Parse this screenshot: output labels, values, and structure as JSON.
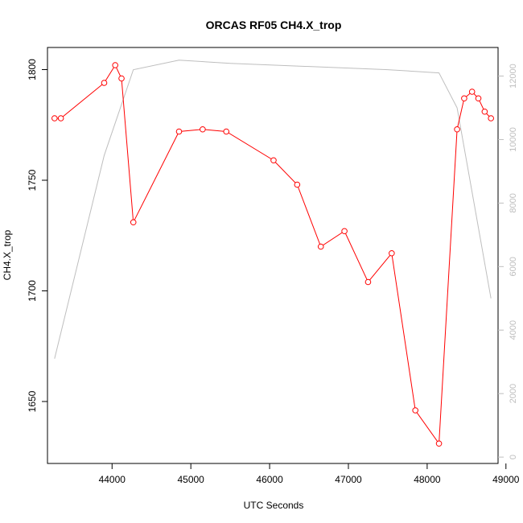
{
  "chart_data": {
    "type": "line",
    "title": "ORCAS RF05 CH4.X_trop",
    "xlabel": "UTC Seconds",
    "ylabel": "CH4.X_trop",
    "xlim": [
      43180,
      48900
    ],
    "ylim": [
      1622,
      1810
    ],
    "y2lim": [
      -200,
      12900
    ],
    "x_ticks": [
      44000,
      45000,
      46000,
      47000,
      48000,
      49000
    ],
    "x_tick_labels": [
      "44000",
      "45000",
      "46000",
      "47000",
      "48000",
      "49000"
    ],
    "y_ticks": [
      1650,
      1700,
      1750,
      1800
    ],
    "y_tick_labels": [
      "1650",
      "1700",
      "1750",
      "1800"
    ],
    "y2_ticks": [
      0,
      2000,
      4000,
      6000,
      8000,
      10000,
      12000
    ],
    "y2_tick_labels": [
      "0",
      "2000",
      "4000",
      "6000",
      "8000",
      "10000",
      "12000"
    ],
    "colors": {
      "ch4": "#ff0000",
      "secondary": "#bebebe",
      "axis": "#000000",
      "axis2": "#bebebe"
    },
    "series": [
      {
        "axis": "left",
        "style": "line-points",
        "x": [
          43270,
          43350,
          43900,
          44040,
          44120,
          44270,
          44850,
          45150,
          45450,
          46050,
          46350,
          46650,
          46950,
          47250,
          47550,
          47850,
          48150,
          48380,
          48470,
          48570,
          48650,
          48730,
          48810
        ],
        "y": [
          1778,
          1778,
          1794,
          1802,
          1796,
          1731,
          1772,
          1773,
          1772,
          1759,
          1748,
          1720,
          1727,
          1704,
          1717,
          1646,
          1631,
          1773,
          1787,
          1790,
          1787,
          1781,
          1778
        ]
      },
      {
        "axis": "right",
        "style": "line",
        "x": [
          43270,
          43900,
          44270,
          44850,
          45500,
          46500,
          47500,
          48150,
          48380,
          48810
        ],
        "y": [
          3100,
          9500,
          12200,
          12500,
          12400,
          12300,
          12200,
          12100,
          11000,
          5000
        ]
      }
    ]
  }
}
